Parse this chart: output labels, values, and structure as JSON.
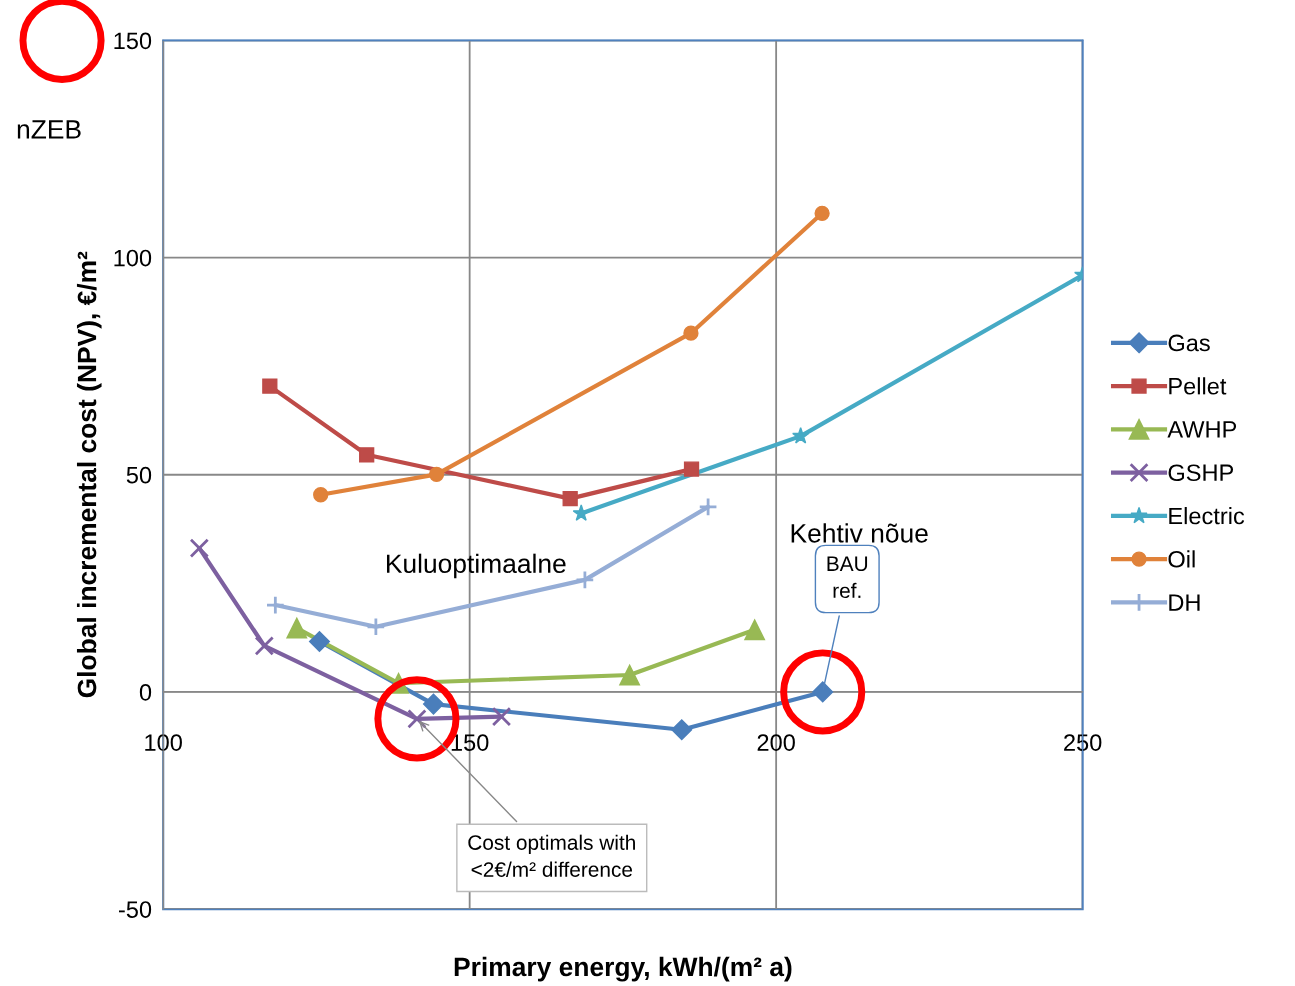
{
  "chart_data": {
    "type": "line",
    "xlabel": "Primary energy, kWh/(m² a)",
    "ylabel": "Global incremental cost (NPV), €/m²",
    "xlim": [
      100,
      250
    ],
    "xticks": [
      100,
      150,
      200,
      250
    ],
    "ylim": [
      -50,
      150
    ],
    "yticks": [
      -50,
      0,
      50,
      100,
      150
    ],
    "grid": true,
    "legend": "right",
    "series": [
      {
        "name": "Gas",
        "color": "#4a7ebb",
        "marker": "diamond",
        "x": [
          125.5,
          144.1,
          184.6,
          207.6
        ],
        "values": [
          11.6,
          -2.8,
          -8.7,
          0
        ]
      },
      {
        "name": "Pellet",
        "color": "#be4b48",
        "marker": "square",
        "x": [
          117.4,
          133.2,
          166.4,
          186.2
        ],
        "values": [
          70.4,
          54.6,
          44.5,
          51.3
        ]
      },
      {
        "name": "AWHP",
        "color": "#98b954",
        "marker": "triangle",
        "x": [
          121.8,
          138.4,
          176.1,
          196.5
        ],
        "values": [
          14.7,
          2.0,
          3.9,
          14.3
        ]
      },
      {
        "name": "GSHP",
        "color": "#7d60a0",
        "marker": "cross",
        "x": [
          105.9,
          116.5,
          141.4,
          155.2
        ],
        "values": [
          33.1,
          10.6,
          -6.2,
          -5.7
        ]
      },
      {
        "name": "Electric",
        "color": "#46aac5",
        "marker": "star",
        "x": [
          168.2,
          204.0,
          250
        ],
        "values": [
          41.1,
          58.9,
          96
        ]
      },
      {
        "name": "Oil",
        "color": "#e0823a",
        "marker": "circle",
        "x": [
          125.7,
          144.6,
          186.1,
          207.5
        ],
        "values": [
          45.4,
          50.1,
          82.6,
          110.2
        ]
      },
      {
        "name": "DH",
        "color": "#95add6",
        "marker": "plus",
        "x": [
          118.3,
          134.7,
          168.8,
          188.9
        ],
        "values": [
          20.0,
          15.0,
          25.8,
          42.6
        ]
      }
    ],
    "annotations": [
      "nZEB",
      "Kuluoptimaalne",
      "Kehtiv nõue",
      {
        "text": "BAU ref.",
        "x": 207.6,
        "y": 0
      },
      {
        "text": "Cost optimals with <2€/m² difference",
        "x": 141.4,
        "y": -6.2
      }
    ]
  }
}
